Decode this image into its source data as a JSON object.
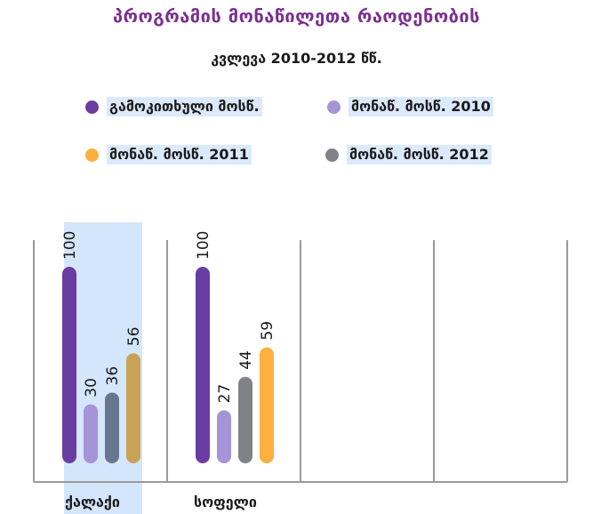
{
  "chart_data": {
    "type": "bar",
    "title": "პროგრამის მონაწილეთა რაოდენობის",
    "subtitle": "კვლევა 2010-2012 წწ.",
    "categories": [
      "ქალაქი",
      "სოფელი",
      "",
      "",
      ""
    ],
    "series": [
      {
        "name": "გამოკითხული მოსწ.",
        "color": "#6a3ea1",
        "values": [
          100,
          100,
          null,
          null,
          null
        ]
      },
      {
        "name": "მონაწ. მოსწ. 2010",
        "color": "#a594d6",
        "values": [
          30,
          27,
          null,
          null,
          null
        ]
      },
      {
        "name": "მონაწ. მოსწ. 2011",
        "color": "#fbb040",
        "values": [
          56,
          59,
          null,
          null,
          null
        ]
      },
      {
        "name": "მონაწ. მოსწ. 2012",
        "color": "#808285",
        "values": [
          36,
          44,
          null,
          null,
          null
        ]
      }
    ],
    "bar_order": [
      0,
      1,
      3,
      2
    ],
    "highlighted_category": 0,
    "ylim": [
      0,
      100
    ],
    "xlabel": "",
    "ylabel": "",
    "grid": false,
    "legend_position": "top"
  },
  "colors": {
    "title": "#7a2f8f",
    "highlight": "#d4e6fb",
    "axis": "#9a9a9a",
    "category_1_bar_2012": "#67768f",
    "category_1_bar_2011": "#c9a257"
  }
}
